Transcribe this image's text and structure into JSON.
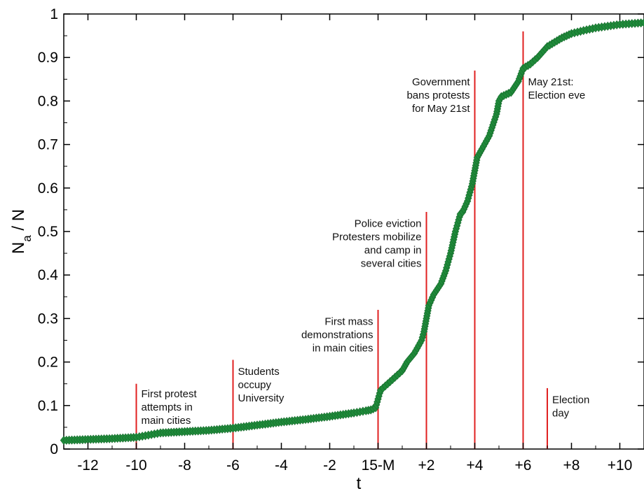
{
  "chart_data": {
    "type": "scatter",
    "xlabel": "t",
    "ylabel_main": "N",
    "ylabel_sub": "a",
    "ylabel_rest": " / N",
    "xlim": [
      -13,
      11
    ],
    "ylim": [
      0,
      1
    ],
    "x_ticks": [
      {
        "value": -12,
        "label": "-12"
      },
      {
        "value": -10,
        "label": "-10"
      },
      {
        "value": -8,
        "label": "-8"
      },
      {
        "value": -6,
        "label": "-6"
      },
      {
        "value": -4,
        "label": "-4"
      },
      {
        "value": -2,
        "label": "-2"
      },
      {
        "value": 0,
        "label": "15-M"
      },
      {
        "value": 2,
        "label": "+2"
      },
      {
        "value": 4,
        "label": "+4"
      },
      {
        "value": 6,
        "label": "+6"
      },
      {
        "value": 8,
        "label": "+8"
      },
      {
        "value": 10,
        "label": "+10"
      }
    ],
    "y_ticks": [
      {
        "value": 0,
        "label": "0"
      },
      {
        "value": 0.1,
        "label": "0.1"
      },
      {
        "value": 0.2,
        "label": "0.2"
      },
      {
        "value": 0.3,
        "label": "0.3"
      },
      {
        "value": 0.4,
        "label": "0.4"
      },
      {
        "value": 0.5,
        "label": "0.5"
      },
      {
        "value": 0.6,
        "label": "0.6"
      },
      {
        "value": 0.7,
        "label": "0.7"
      },
      {
        "value": 0.8,
        "label": "0.8"
      },
      {
        "value": 0.9,
        "label": "0.9"
      },
      {
        "value": 1,
        "label": "1"
      }
    ],
    "series": [
      {
        "color": "#1f8a3a",
        "marker": "diamond",
        "x": [
          -13,
          -12,
          -11,
          -10,
          -9.5,
          -9,
          -8,
          -7,
          -6,
          -5,
          -4,
          -3,
          -2,
          -1,
          -0.5,
          -0.3,
          -0.1,
          0,
          0.1,
          0.3,
          0.5,
          0.8,
          1.0,
          1.2,
          1.5,
          1.8,
          1.9,
          2.0,
          2.1,
          2.3,
          2.6,
          2.8,
          3.0,
          3.2,
          3.4,
          3.5,
          3.7,
          3.9,
          4.0,
          4.1,
          4.3,
          4.6,
          4.9,
          5.0,
          5.1,
          5.3,
          5.5,
          5.8,
          6.0,
          6.3,
          6.6,
          7.0,
          7.3,
          7.6,
          8.0,
          8.5,
          9.0,
          9.5,
          10.0,
          10.5,
          11.0
        ],
        "y": [
          0.02,
          0.022,
          0.024,
          0.027,
          0.032,
          0.037,
          0.04,
          0.043,
          0.048,
          0.055,
          0.062,
          0.068,
          0.075,
          0.083,
          0.088,
          0.09,
          0.095,
          0.115,
          0.135,
          0.145,
          0.155,
          0.17,
          0.18,
          0.2,
          0.22,
          0.25,
          0.27,
          0.3,
          0.33,
          0.355,
          0.38,
          0.41,
          0.45,
          0.5,
          0.54,
          0.545,
          0.57,
          0.61,
          0.64,
          0.67,
          0.69,
          0.72,
          0.77,
          0.8,
          0.81,
          0.815,
          0.82,
          0.845,
          0.875,
          0.885,
          0.9,
          0.925,
          0.935,
          0.945,
          0.955,
          0.962,
          0.968,
          0.972,
          0.976,
          0.978,
          0.98
        ]
      }
    ],
    "events": [
      {
        "x": -10,
        "y_top": 0.15,
        "lines": [
          "First protest",
          "attempts in",
          "main cities"
        ],
        "text_side": "right",
        "text_top_y": 0.138
      },
      {
        "x": -6,
        "y_top": 0.205,
        "lines": [
          "Students",
          "occupy",
          "University"
        ],
        "text_side": "right",
        "text_top_y": 0.19
      },
      {
        "x": 0,
        "y_top": 0.32,
        "lines": [
          "First mass",
          "demonstrations",
          "in main cities"
        ],
        "text_side": "left",
        "text_top_y": 0.305
      },
      {
        "x": 2,
        "y_top": 0.545,
        "lines": [
          "Police eviction",
          "Protesters mobilize",
          "and camp in",
          "several cities"
        ],
        "text_side": "left",
        "text_top_y": 0.53
      },
      {
        "x": 4,
        "y_top": 0.87,
        "lines": [
          "Government",
          "bans protests",
          "for May 21st"
        ],
        "text_side": "left",
        "text_top_y": 0.855
      },
      {
        "x": 6,
        "y_top": 0.96,
        "lines": [
          "May 21st:",
          "Election eve"
        ],
        "text_side": "right",
        "text_top_y": 0.855
      },
      {
        "x": 7,
        "y_top": 0.14,
        "lines": [
          "Election",
          "day"
        ],
        "text_side": "right",
        "text_top_y": 0.125
      }
    ],
    "event_line_color": "#e02020",
    "grid": false
  }
}
